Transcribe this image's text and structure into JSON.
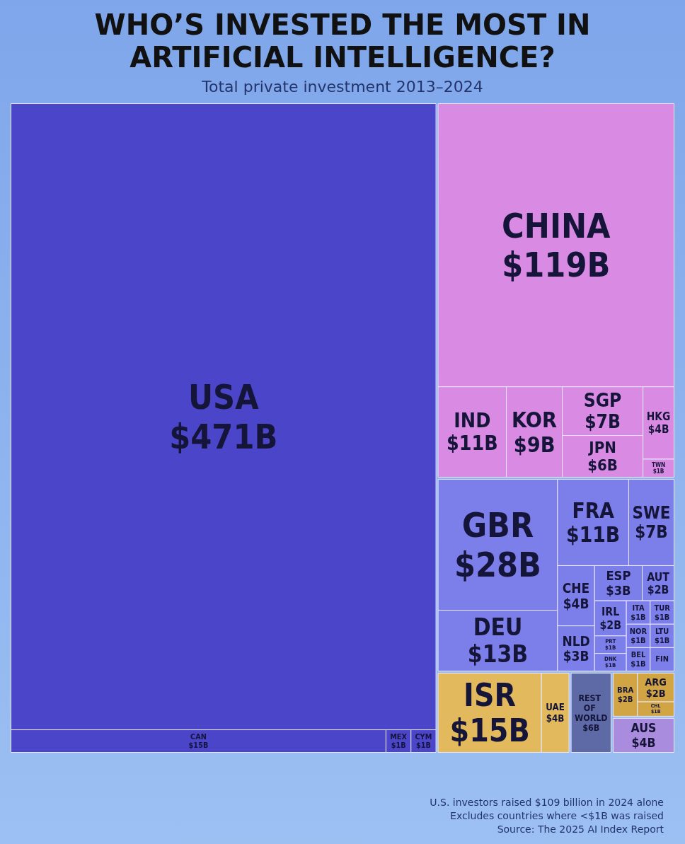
{
  "chart_data": {
    "type": "other",
    "title": "WHO’S INVESTED THE MOST IN ARTIFICIAL INTELLIGENCE?",
    "subtitle": "Total private investment 2013–2024",
    "categories": [
      "USA",
      "CAN",
      "MEX",
      "CYM",
      "CHINA",
      "SGP",
      "JPN",
      "KOR",
      "TWN",
      "IND",
      "HKG",
      "UAE",
      "ISR",
      "CHL",
      "BRA",
      "ARG",
      "REST OF WORLD",
      "AUS",
      "GBR",
      "DEU",
      "FRA",
      "SWE",
      "CHE",
      "NLD",
      "ESP",
      "AUT",
      "IRL",
      "PRT",
      "DNK",
      "ITA",
      "TUR",
      "NOR",
      "BEL",
      "LTU",
      "FIN"
    ],
    "values": [
      471,
      15,
      1,
      1,
      119,
      7,
      6,
      9,
      1,
      11,
      4,
      4,
      15,
      1,
      2,
      2,
      6,
      4,
      28,
      13,
      11,
      7,
      4,
      3,
      3,
      2,
      2,
      1,
      1,
      1,
      1,
      1,
      1,
      1,
      null
    ],
    "value_labels": [
      "$471B",
      "$15B",
      "$1B",
      "$1B",
      "$119B",
      "$7B",
      "$6B",
      "$9B",
      "$1B",
      "$11B",
      "$4B",
      "$4B",
      "$15B",
      "$1B",
      "$2B",
      "$2B",
      "$6B",
      "$4B",
      "$28B",
      "$13B",
      "$11B",
      "$7B",
      "$4B",
      "$3B",
      "$3B",
      "$2B",
      "$2B",
      "$1B",
      "$1B",
      "$1B",
      "$1B",
      "$1B",
      "$1B",
      "$1B",
      null
    ],
    "colors": [
      "#4b45c9",
      "#4b45c9",
      "#4b45c9",
      "#4b45c9",
      "#d98ae2",
      "#d98ae2",
      "#d98ae2",
      "#d98ae2",
      "#d98ae2",
      "#d98ae2",
      "#d98ae2",
      "#e2b95c",
      "#e2b95c",
      "#d1a544",
      "#d1a544",
      "#d1a544",
      "#5e6aa6",
      "#a98cdd",
      "#7c7ee9",
      "#7c7ee9",
      "#7c7ee9",
      "#7c7ee9",
      "#7c7ee9",
      "#7c7ee9",
      "#7c7ee9",
      "#7c7ee9",
      "#7c7ee9",
      "#7c7ee9",
      "#7c7ee9",
      "#7c7ee9",
      "#7c7ee9",
      "#7c7ee9",
      "#7c7ee9",
      "#7c7ee9",
      "#7c7ee9"
    ],
    "annotations": [
      "U.S. investors raised $109 billion in 2024 alone",
      "Excludes countries where <$1B was raised",
      "Source: The 2025 AI Index Report"
    ]
  }
}
